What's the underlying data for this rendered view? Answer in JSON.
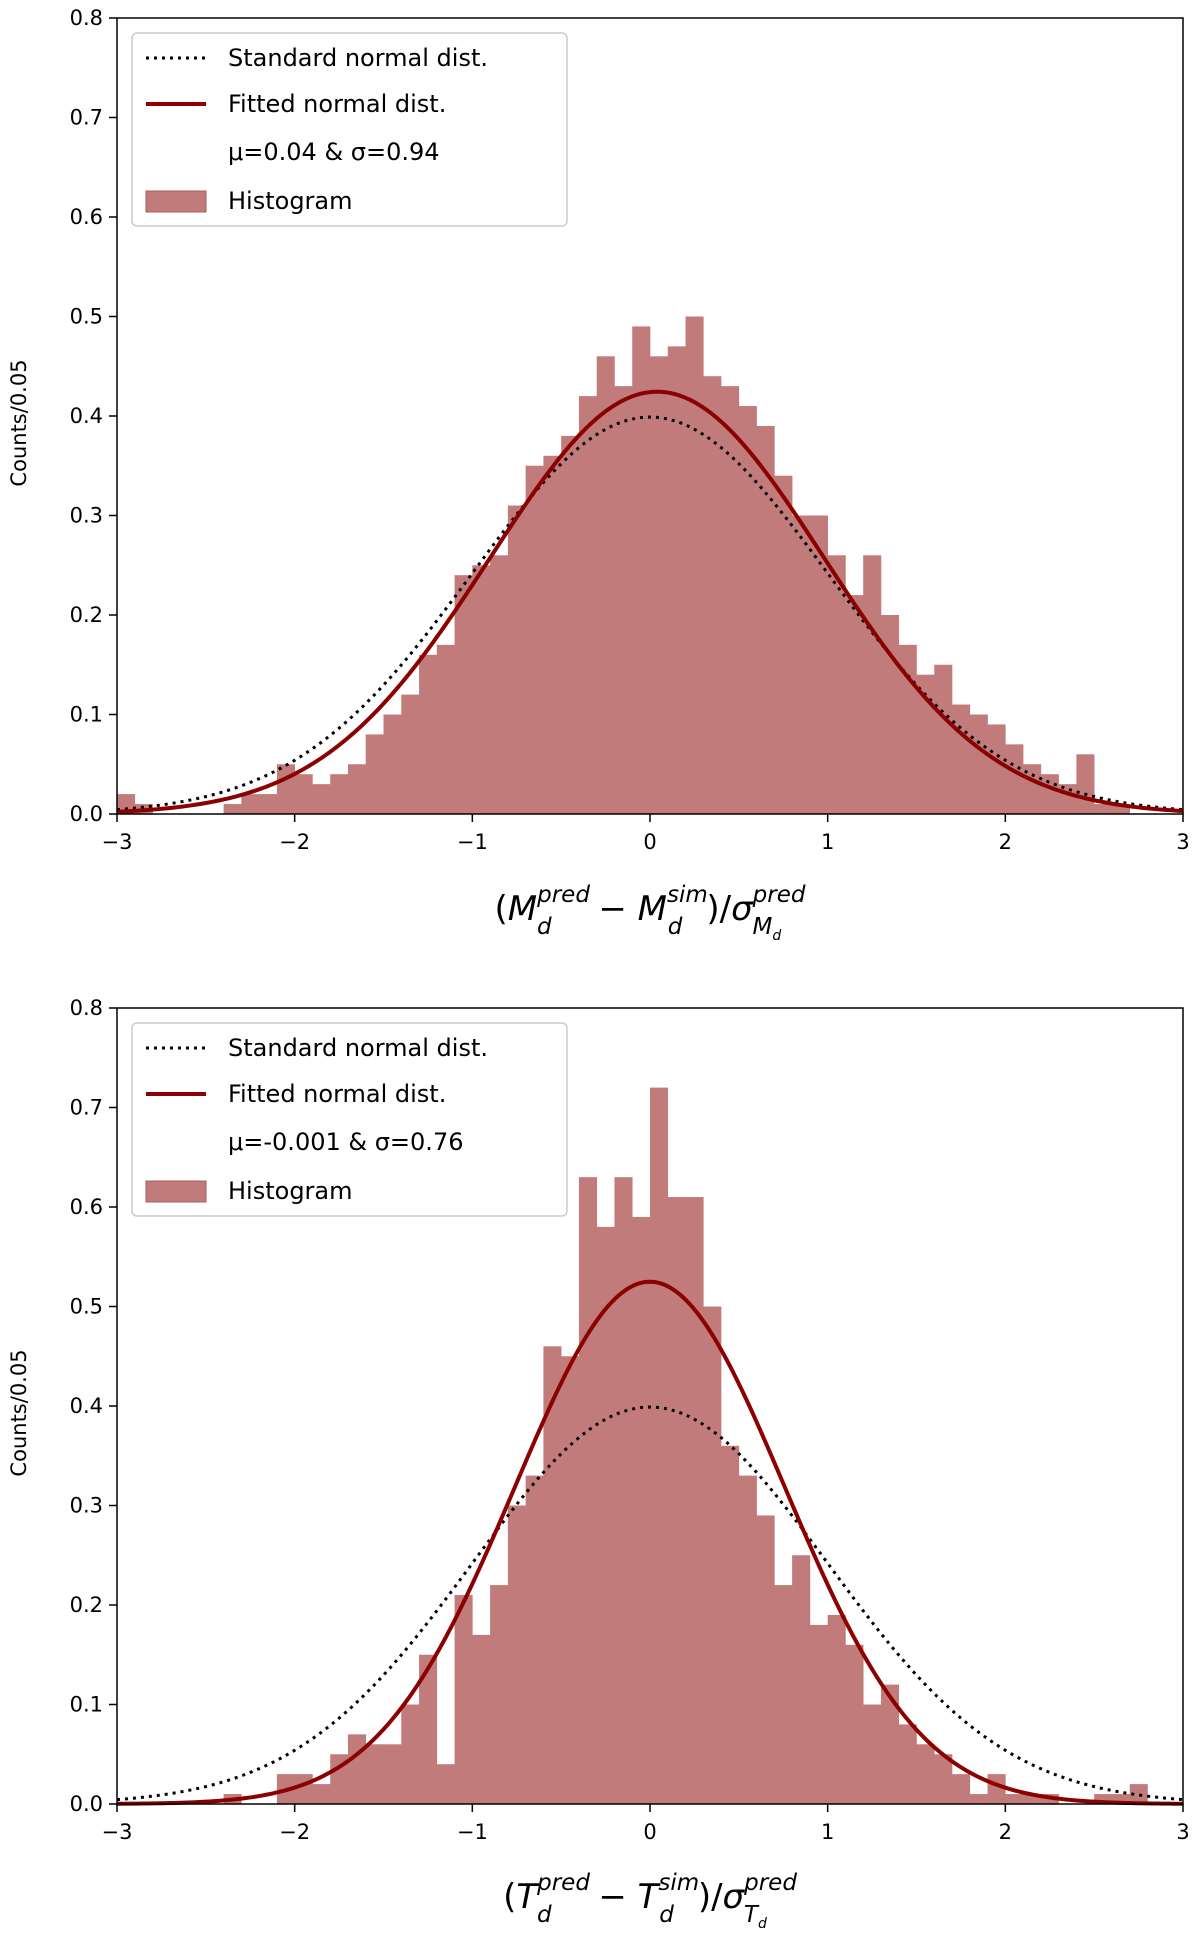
{
  "colors": {
    "histogram_fill": "#c27b7b",
    "histogram_edge": "#b05a5a",
    "fitted_line": "#8b0000",
    "standard_line": "#000000",
    "legend_border": "#cccccc"
  },
  "chart_data": [
    {
      "type": "histogram",
      "xlim": [
        -3,
        3
      ],
      "ylim": [
        0,
        0.8
      ],
      "xticks": [
        -3,
        -2,
        -1,
        0,
        1,
        2,
        3
      ],
      "xtick_labels": [
        "−3",
        "−2",
        "−1",
        "0",
        "1",
        "2",
        "3"
      ],
      "yticks": [
        0.0,
        0.1,
        0.2,
        0.3,
        0.4,
        0.5,
        0.6,
        0.7,
        0.8
      ],
      "ytick_labels": [
        "0.0",
        "0.1",
        "0.2",
        "0.3",
        "0.4",
        "0.5",
        "0.6",
        "0.7",
        "0.8"
      ],
      "ylabel": "Counts/0.05",
      "xlabel": {
        "open": "(",
        "a": "M",
        "a_sub": "d",
        "a_sup": "pred",
        "minus": " − ",
        "b": "M",
        "b_sub": "d",
        "b_sup": "sim",
        "close": ")/",
        "sigma": "σ",
        "sigma_sub": "M",
        "sigma_subsub": "d",
        "sigma_sup": "pred"
      },
      "legend": {
        "standard": "Standard normal dist.",
        "fitted": "Fitted normal dist.",
        "fit_params": "μ=0.04 & σ=0.94",
        "histogram": "Histogram"
      },
      "fit": {
        "mu": 0.04,
        "sigma": 0.94
      },
      "standard": {
        "mu": 0,
        "sigma": 1
      },
      "bin_width": 0.1,
      "bin_edges_start": -3.0,
      "bin_values": [
        0.02,
        0.01,
        0.0,
        0.0,
        0.0,
        0.0,
        0.01,
        0.02,
        0.02,
        0.05,
        0.04,
        0.03,
        0.04,
        0.05,
        0.08,
        0.1,
        0.12,
        0.16,
        0.17,
        0.24,
        0.25,
        0.26,
        0.31,
        0.35,
        0.36,
        0.38,
        0.42,
        0.46,
        0.43,
        0.49,
        0.46,
        0.47,
        0.5,
        0.44,
        0.43,
        0.41,
        0.39,
        0.34,
        0.3,
        0.3,
        0.26,
        0.22,
        0.26,
        0.2,
        0.17,
        0.14,
        0.15,
        0.11,
        0.1,
        0.09,
        0.07,
        0.05,
        0.04,
        0.03,
        0.06,
        0.01,
        0.01,
        0.0,
        0.0,
        0.0
      ]
    },
    {
      "type": "histogram",
      "xlim": [
        -3,
        3
      ],
      "ylim": [
        0,
        0.8
      ],
      "xticks": [
        -3,
        -2,
        -1,
        0,
        1,
        2,
        3
      ],
      "xtick_labels": [
        "−3",
        "−2",
        "−1",
        "0",
        "1",
        "2",
        "3"
      ],
      "yticks": [
        0.0,
        0.1,
        0.2,
        0.3,
        0.4,
        0.5,
        0.6,
        0.7,
        0.8
      ],
      "ytick_labels": [
        "0.0",
        "0.1",
        "0.2",
        "0.3",
        "0.4",
        "0.5",
        "0.6",
        "0.7",
        "0.8"
      ],
      "ylabel": "Counts/0.05",
      "xlabel": {
        "open": "(",
        "a": "T",
        "a_sub": "d",
        "a_sup": "pred",
        "minus": " − ",
        "b": "T",
        "b_sub": "d",
        "b_sup": "sim",
        "close": ")/",
        "sigma": "σ",
        "sigma_sub": "T",
        "sigma_subsub": "d",
        "sigma_sup": "pred"
      },
      "legend": {
        "standard": "Standard normal dist.",
        "fitted": "Fitted normal dist.",
        "fit_params": "μ=-0.001 & σ=0.76",
        "histogram": "Histogram"
      },
      "fit": {
        "mu": -0.001,
        "sigma": 0.76
      },
      "standard": {
        "mu": 0,
        "sigma": 1
      },
      "bin_width": 0.1,
      "bin_edges_start": -3.0,
      "bin_values": [
        0.0,
        0.0,
        0.0,
        0.0,
        0.0,
        0.0,
        0.01,
        0.0,
        0.0,
        0.03,
        0.03,
        0.02,
        0.05,
        0.07,
        0.06,
        0.06,
        0.1,
        0.15,
        0.04,
        0.21,
        0.17,
        0.22,
        0.3,
        0.33,
        0.46,
        0.45,
        0.63,
        0.58,
        0.63,
        0.59,
        0.72,
        0.61,
        0.61,
        0.5,
        0.36,
        0.33,
        0.29,
        0.22,
        0.25,
        0.18,
        0.19,
        0.16,
        0.1,
        0.12,
        0.08,
        0.06,
        0.05,
        0.03,
        0.01,
        0.03,
        0.01,
        0.01,
        0.01,
        0.0,
        0.0,
        0.01,
        0.01,
        0.02,
        0.0,
        0.0
      ]
    }
  ]
}
